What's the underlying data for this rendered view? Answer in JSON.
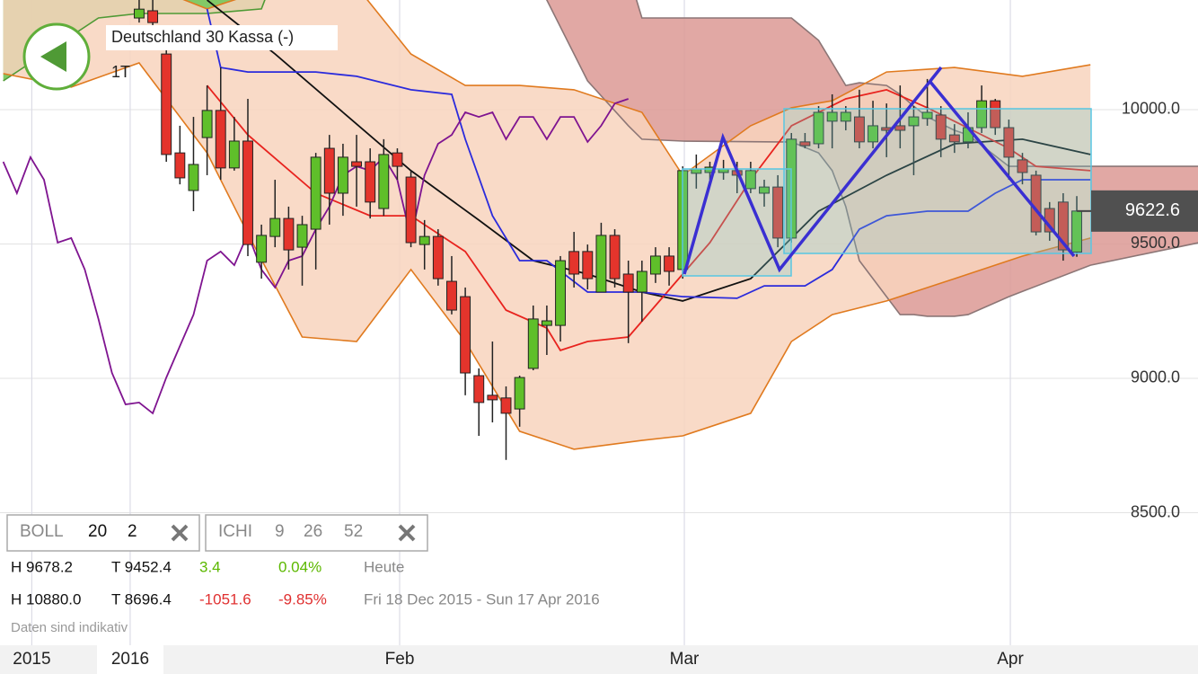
{
  "header": {
    "title": "Deutschland 30 Kassa (-)",
    "period": "1T"
  },
  "indicators": [
    {
      "name": "BOLL",
      "params": [
        20,
        2
      ]
    },
    {
      "name": "ICHI",
      "params": [
        9,
        26,
        52
      ]
    }
  ],
  "stats": [
    [
      "H 9678.2",
      "T 9452.4",
      "3.4",
      "0.04%",
      "Heute"
    ],
    [
      "H 10880.0",
      "T 8696.4",
      "-1051.6",
      "-9.85%",
      "Fri 18 Dec 2015 - Sun 17 Apr 2016"
    ]
  ],
  "note": "Daten sind indikativ",
  "chart_data": {
    "type": "candlestick",
    "xlim": [
      -10.24,
      77.92
    ],
    "xticks": [
      {
        "value": -7.9,
        "label": "2015"
      },
      {
        "value": -0.66,
        "label": "2016"
      },
      {
        "value": 19.17,
        "label": "Feb"
      },
      {
        "value": 40.12,
        "label": "Mar"
      },
      {
        "value": 64.11,
        "label": "Apr"
      }
    ],
    "ylim": [
      8006.7,
      10408
    ],
    "yticks": [
      {
        "value": 8500,
        "label": "8500.0"
      },
      {
        "value": 9000,
        "label": "9000.0"
      },
      {
        "value": 9500,
        "label": "9500.0"
      },
      {
        "value": 10000,
        "label": "10000.0"
      }
    ],
    "grid": true,
    "up_color": "#5fbf2a",
    "down_color": "#e4342c",
    "open": [
      10341,
      10368,
      10207,
      9839,
      9699,
      9896,
      9997,
      9783,
      9883,
      9432,
      9528,
      9595,
      9488,
      9555,
      9856,
      9689,
      9806,
      9806,
      9632,
      9839,
      9749,
      9498,
      9528,
      9361,
      9304,
      9010,
      8937,
      8927,
      8886,
      9037,
      9197,
      9197,
      9472,
      9472,
      9321,
      9532,
      9388,
      9321,
      9388,
      9455,
      9405,
      9763,
      9766,
      9766,
      9773,
      9706,
      9689,
      9712,
      9522,
      9880,
      9873,
      9957,
      9957,
      9973,
      9880,
      9933,
      9940,
      9940,
      9967,
      9980,
      9906,
      9880,
      9933,
      10033,
      9933,
      9813,
      9756,
      9632,
      9656,
      9470
    ],
    "high": [
      10408,
      10408,
      10274,
      9940,
      9973,
      10090,
      10157,
      9973,
      10040,
      9572,
      9739,
      9639,
      9605,
      9839,
      9906,
      9873,
      9906,
      9856,
      9890,
      9856,
      9773,
      9589,
      9555,
      9455,
      9338,
      9037,
      9137,
      8970,
      9010,
      9271,
      9271,
      9455,
      9545,
      9498,
      9579,
      9555,
      9438,
      9438,
      9488,
      9488,
      9789,
      9833,
      9806,
      9813,
      9806,
      9806,
      9739,
      9756,
      9913,
      9913,
      10013,
      10057,
      10013,
      10074,
      10033,
      10023,
      10090,
      10013,
      10114,
      10013,
      9946,
      9990,
      10090,
      10040,
      9963,
      9839,
      9773,
      9656,
      9689,
      9678.2
    ],
    "low": [
      10324,
      10308,
      9806,
      9722,
      9622,
      9756,
      9739,
      9773,
      9455,
      9371,
      9488,
      9405,
      9345,
      9405,
      9572,
      9605,
      9639,
      9595,
      9605,
      9739,
      9488,
      9405,
      9345,
      9238,
      8937,
      8786,
      8836,
      8696.4,
      8820,
      9030,
      9087,
      9137,
      9338,
      9331,
      9321,
      9338,
      9131,
      9211,
      9355,
      9345,
      9371,
      9706,
      9739,
      9739,
      9689,
      9689,
      9639,
      9488,
      9505,
      9856,
      9856,
      9856,
      9923,
      9856,
      9856,
      9823,
      9856,
      9756,
      9940,
      9823,
      9839,
      9856,
      9913,
      9906,
      9739,
      9722,
      9532,
      9512,
      9438,
      9452.4
    ],
    "close": [
      10374,
      10324,
      9833,
      9746,
      9796,
      9997,
      9783,
      9883,
      9498,
      9532,
      9595,
      9478,
      9572,
      9823,
      9689,
      9823,
      9789,
      9656,
      9833,
      9789,
      9505,
      9528,
      9371,
      9254,
      9020,
      8910,
      8920,
      8870,
      9003,
      9221,
      9214,
      9438,
      9388,
      9371,
      9532,
      9371,
      9321,
      9398,
      9455,
      9398,
      9773,
      9779,
      9786,
      9779,
      9756,
      9773,
      9712,
      9522,
      9890,
      9866,
      9990,
      9990,
      9990,
      9880,
      9940,
      9923,
      9923,
      9973,
      9990,
      9890,
      9880,
      9933,
      10033,
      9933,
      9823,
      9766,
      9545,
      9545,
      9478,
      9622.6
    ],
    "last_price": 9622.6,
    "cloud": [
      {
        "fill": "#6cc04c",
        "color": "#4f9a35",
        "x": [
          -10,
          -7,
          -3,
          0,
          5,
          9,
          10
        ],
        "upper": [
          10508,
          10508,
          10508,
          10508,
          10508,
          10508,
          10508
        ],
        "lower": [
          10107,
          10207,
          10341,
          10358,
          10358,
          10375,
          10508
        ]
      },
      {
        "fill": "#dc9994",
        "color": "#8c7676",
        "x": [
          29,
          33,
          36,
          37,
          40,
          47,
          48,
          50,
          51,
          52,
          53,
          55,
          56,
          57,
          58,
          60,
          61,
          64,
          70,
          78
        ],
        "upper": [
          10508,
          10508,
          10508,
          10341,
          10341,
          10341,
          10341,
          10258,
          10174,
          10090,
          10100,
          10090,
          10057,
          10013,
          9973,
          9923,
          9906,
          9789,
          9789,
          9789
        ],
        "lower": [
          10508,
          10107,
          9940,
          9890,
          9883,
          9880,
          9880,
          9839,
          9773,
          9639,
          9438,
          9304,
          9237,
          9237,
          9231,
          9231,
          9237,
          9304,
          9421,
          9505
        ]
      }
    ],
    "bollinger": {
      "color": "#e07a1f",
      "fill": "#f8d3bd",
      "x": [
        -10,
        -5,
        0,
        5,
        8,
        12,
        16,
        20,
        24,
        28,
        32,
        37,
        40,
        45,
        48,
        51,
        55,
        60,
        65,
        70
      ],
      "upper": [
        10542,
        10542,
        10475,
        10375,
        10425,
        10475,
        10458,
        10207,
        10090,
        10090,
        10074,
        9990,
        9756,
        9940,
        10007,
        10033,
        10140,
        10157,
        10124,
        10167
      ],
      "lower": [
        10134,
        10084,
        10174,
        9839,
        9538,
        9154,
        9137,
        9405,
        9137,
        8803,
        8736,
        8769,
        8786,
        8870,
        9137,
        9237,
        9288,
        9371,
        9455,
        9522
      ]
    },
    "lines": [
      {
        "color": "#111111",
        "x": [
          5,
          10,
          15,
          20,
          25,
          29,
          33,
          37,
          40,
          45,
          50,
          55,
          60,
          65,
          70
        ],
        "values": [
          10408,
          10207,
          9990,
          9773,
          9589,
          9438,
          9388,
          9321,
          9288,
          9371,
          9622,
          9756,
          9873,
          9890,
          9833
        ]
      },
      {
        "color": "#e8231e",
        "x": [
          5,
          8,
          13,
          17,
          20,
          24,
          27,
          30,
          31,
          33,
          36,
          40,
          42,
          45,
          48,
          52,
          55,
          58,
          60,
          64,
          66,
          70
        ],
        "values": [
          10090,
          9906,
          9689,
          9605,
          9605,
          9472,
          9254,
          9187,
          9104,
          9137,
          9154,
          9388,
          9505,
          9739,
          9940,
          10040,
          10074,
          10007,
          9957,
          9856,
          9789,
          9773
        ]
      },
      {
        "color": "#2b2bdc",
        "x": [
          5,
          6,
          8,
          11,
          13,
          16,
          20,
          23,
          24,
          26,
          28,
          30,
          33,
          37,
          40,
          44,
          46,
          49,
          51,
          53,
          55,
          58,
          61,
          63,
          65,
          70
        ],
        "values": [
          10375,
          10157,
          10140,
          10140,
          10140,
          10124,
          10074,
          10057,
          9890,
          9605,
          9438,
          9438,
          9321,
          9321,
          9304,
          9298,
          9344,
          9344,
          9405,
          9555,
          9605,
          9622,
          9622,
          9689,
          9739,
          9739
        ]
      },
      {
        "color": "#7f1490",
        "x": [
          -10,
          -9,
          -8,
          -7,
          -6,
          -5,
          -4,
          -3,
          -2,
          -1,
          0,
          1,
          2,
          3,
          4,
          5,
          6,
          7,
          8,
          9,
          10,
          11,
          12,
          13,
          14,
          15,
          16,
          17,
          18,
          19,
          20,
          21,
          22,
          23,
          24,
          25,
          26,
          27,
          28,
          29,
          30,
          31,
          32,
          33,
          34,
          35,
          36
        ],
        "values": [
          9806,
          9689,
          9823,
          9739,
          9505,
          9522,
          9405,
          9221,
          9020,
          8903,
          8910,
          8870,
          9003,
          9120,
          9237,
          9438,
          9472,
          9421,
          9538,
          9405,
          9338,
          9438,
          9455,
          9555,
          9639,
          9756,
          9789,
          9773,
          9823,
          9739,
          9522,
          9756,
          9873,
          9906,
          9990,
          9973,
          9990,
          9890,
          9973,
          9973,
          9890,
          9973,
          9973,
          9880,
          9940,
          10023,
          10040
        ]
      }
    ]
  }
}
